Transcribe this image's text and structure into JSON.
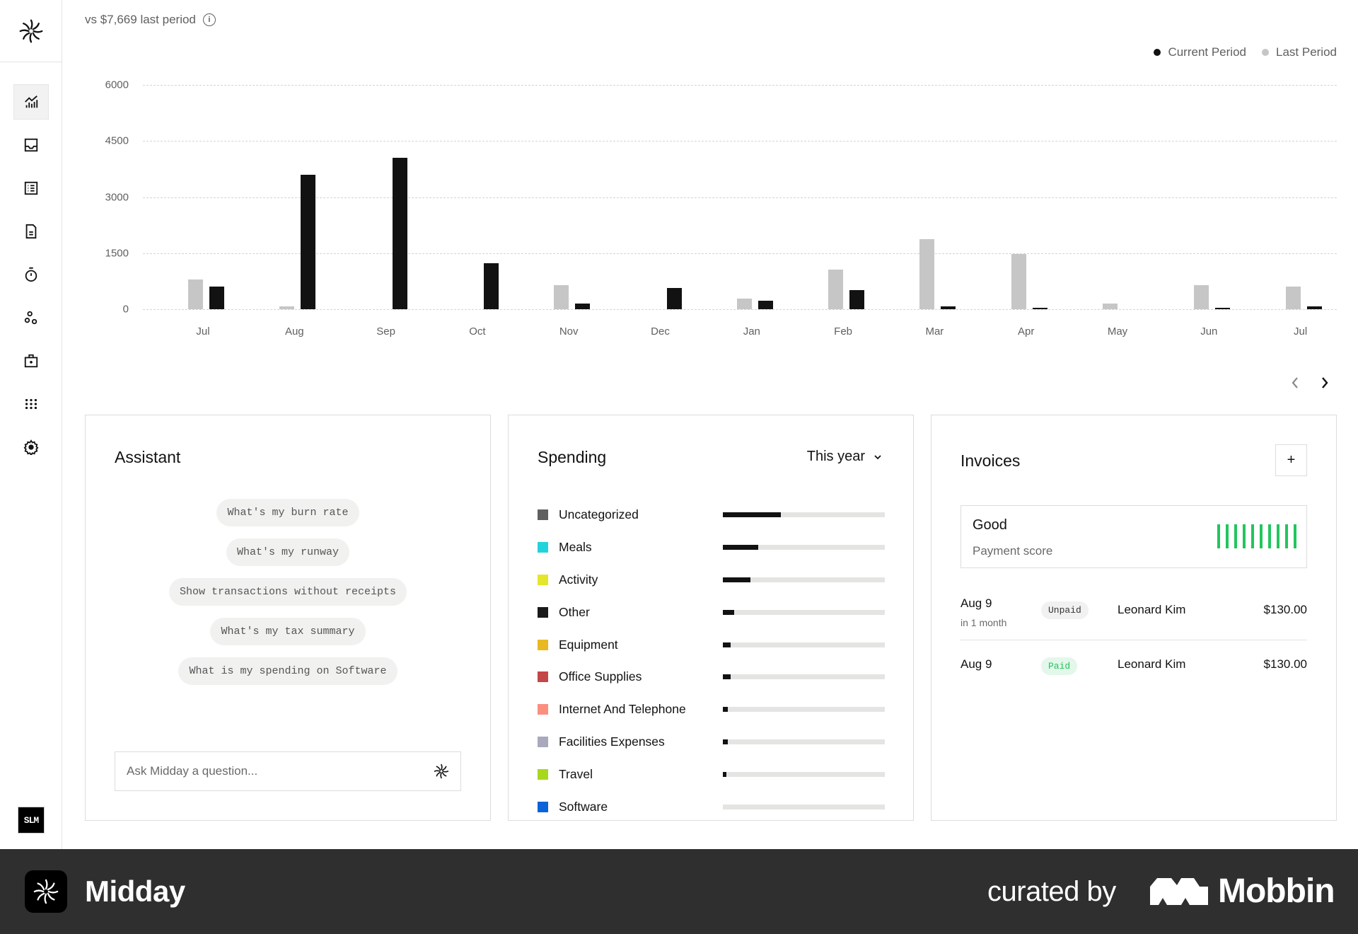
{
  "app": {
    "name": "Midday"
  },
  "sidebar": {
    "items": [
      {
        "id": "overview",
        "icon": "chart-icon",
        "active": true
      },
      {
        "id": "inbox",
        "icon": "inbox-icon",
        "active": false
      },
      {
        "id": "transactions",
        "icon": "list-icon",
        "active": false
      },
      {
        "id": "invoices",
        "icon": "document-icon",
        "active": false
      },
      {
        "id": "tracker",
        "icon": "timer-icon",
        "active": false
      },
      {
        "id": "customers",
        "icon": "circles-icon",
        "active": false
      },
      {
        "id": "vault",
        "icon": "briefcase-icon",
        "active": false
      },
      {
        "id": "apps",
        "icon": "grid-dots-icon",
        "active": false
      },
      {
        "id": "settings",
        "icon": "gear-icon",
        "active": false
      }
    ],
    "avatar_text": "SLM"
  },
  "summary": {
    "comparison_text": "vs $7,669 last period",
    "info_icon": "i"
  },
  "legend": {
    "current": "Current Period",
    "last": "Last Period",
    "current_color": "#121212",
    "last_color": "#c6c6c6"
  },
  "chart_data": {
    "type": "bar",
    "title": "",
    "xlabel": "",
    "ylabel": "",
    "ylim": [
      0,
      6000
    ],
    "yticks": [
      0,
      1500,
      3000,
      4500,
      6000
    ],
    "grid": true,
    "legend_position": "top-right",
    "categories": [
      "Jul",
      "Aug",
      "Sep",
      "Oct",
      "Nov",
      "Dec",
      "Jan",
      "Feb",
      "Mar",
      "Apr",
      "May",
      "Jun",
      "Jul"
    ],
    "series": [
      {
        "name": "Last Period",
        "color": "#c6c6c6",
        "values": [
          800,
          80,
          0,
          0,
          650,
          0,
          280,
          1060,
          1870,
          1480,
          150,
          650,
          600
        ]
      },
      {
        "name": "Current Period",
        "color": "#121212",
        "values": [
          600,
          3600,
          4050,
          1230,
          150,
          560,
          230,
          520,
          80,
          30,
          0,
          20,
          70
        ]
      }
    ]
  },
  "pager": {
    "prev": "‹",
    "next": "›"
  },
  "assistant": {
    "title": "Assistant",
    "suggestions": [
      "What's my burn rate",
      "What's my runway",
      "Show transactions without receipts",
      "What's my tax summary",
      "What is my spending on Software"
    ],
    "input_placeholder": "Ask Midday a question..."
  },
  "spending": {
    "title": "Spending",
    "period_label": "This year",
    "categories": [
      {
        "label": "Uncategorized",
        "color": "#606060",
        "pct": 36
      },
      {
        "label": "Meals",
        "color": "#22d3db",
        "pct": 22
      },
      {
        "label": "Activity",
        "color": "#e5e52b",
        "pct": 17
      },
      {
        "label": "Other",
        "color": "#1a1a1a",
        "pct": 7
      },
      {
        "label": "Equipment",
        "color": "#e8b923",
        "pct": 5
      },
      {
        "label": "Office Supplies",
        "color": "#c44747",
        "pct": 5
      },
      {
        "label": "Internet And Telephone",
        "color": "#fa8f7f",
        "pct": 3
      },
      {
        "label": "Facilities Expenses",
        "color": "#a9a9bd",
        "pct": 3
      },
      {
        "label": "Travel",
        "color": "#a8d81e",
        "pct": 2
      },
      {
        "label": "Software",
        "color": "#0a63d8",
        "pct": 0
      }
    ]
  },
  "invoices": {
    "title": "Invoices",
    "add_label": "+",
    "payment_score": {
      "value": "Good",
      "label": "Payment score",
      "bars": 10,
      "color": "#22c55e"
    },
    "rows": [
      {
        "date": "Aug 9",
        "due": "in 1 month",
        "status": "Unpaid",
        "customer": "Leonard Kim",
        "amount": "$130.00"
      },
      {
        "date": "Aug 9",
        "due": "",
        "status": "Paid",
        "customer": "Leonard Kim",
        "amount": "$130.00"
      }
    ]
  },
  "footer": {
    "app_name": "Midday",
    "curated_by": "curated by",
    "brand": "Mobbin"
  }
}
